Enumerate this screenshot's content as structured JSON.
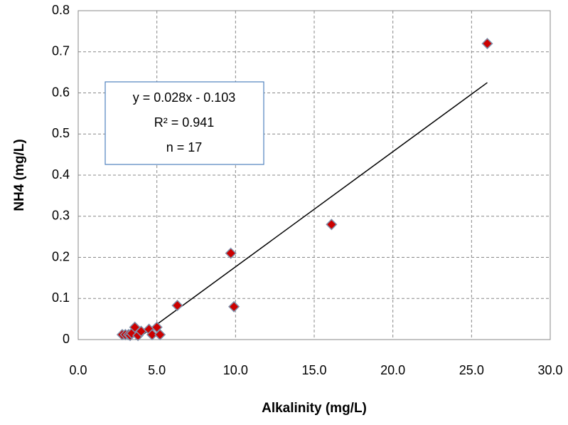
{
  "chart_data": {
    "type": "scatter",
    "x_label": "Alkalinity (mg/L)",
    "y_label": "NH4 (mg/L)",
    "series": [
      {
        "color": "#cc0000",
        "x": [
          2.8,
          3.0,
          3.2,
          3.3,
          3.4,
          3.6,
          3.8,
          4.0,
          4.5,
          4.7,
          5.0,
          5.2,
          6.3,
          9.7,
          9.9,
          16.1,
          26.0
        ],
        "values": [
          0.012,
          0.012,
          0.012,
          0.01,
          0.015,
          0.03,
          0.01,
          0.02,
          0.025,
          0.012,
          0.03,
          0.012,
          0.083,
          0.21,
          0.08,
          0.28,
          0.72
        ]
      }
    ],
    "trendline": {
      "slope": 0.028,
      "intercept": -0.103,
      "color": "#000000"
    },
    "annotations": [
      "y = 0.028x - 0.103",
      "R² = 0.941",
      "n = 17"
    ],
    "xlim": [
      0,
      30
    ],
    "ylim": [
      0,
      0.8
    ],
    "xticks": [
      {
        "value": 0,
        "label": "0.0"
      },
      {
        "value": 5,
        "label": "5.0"
      },
      {
        "value": 10,
        "label": "10.0"
      },
      {
        "value": 15,
        "label": "15.0"
      },
      {
        "value": 20,
        "label": "20.0"
      },
      {
        "value": 25,
        "label": "25.0"
      },
      {
        "value": 30,
        "label": "30.0"
      }
    ],
    "yticks": [
      0,
      0.1,
      0.2,
      0.3,
      0.4,
      0.5,
      0.6,
      0.7,
      0.8
    ],
    "grid": true
  }
}
